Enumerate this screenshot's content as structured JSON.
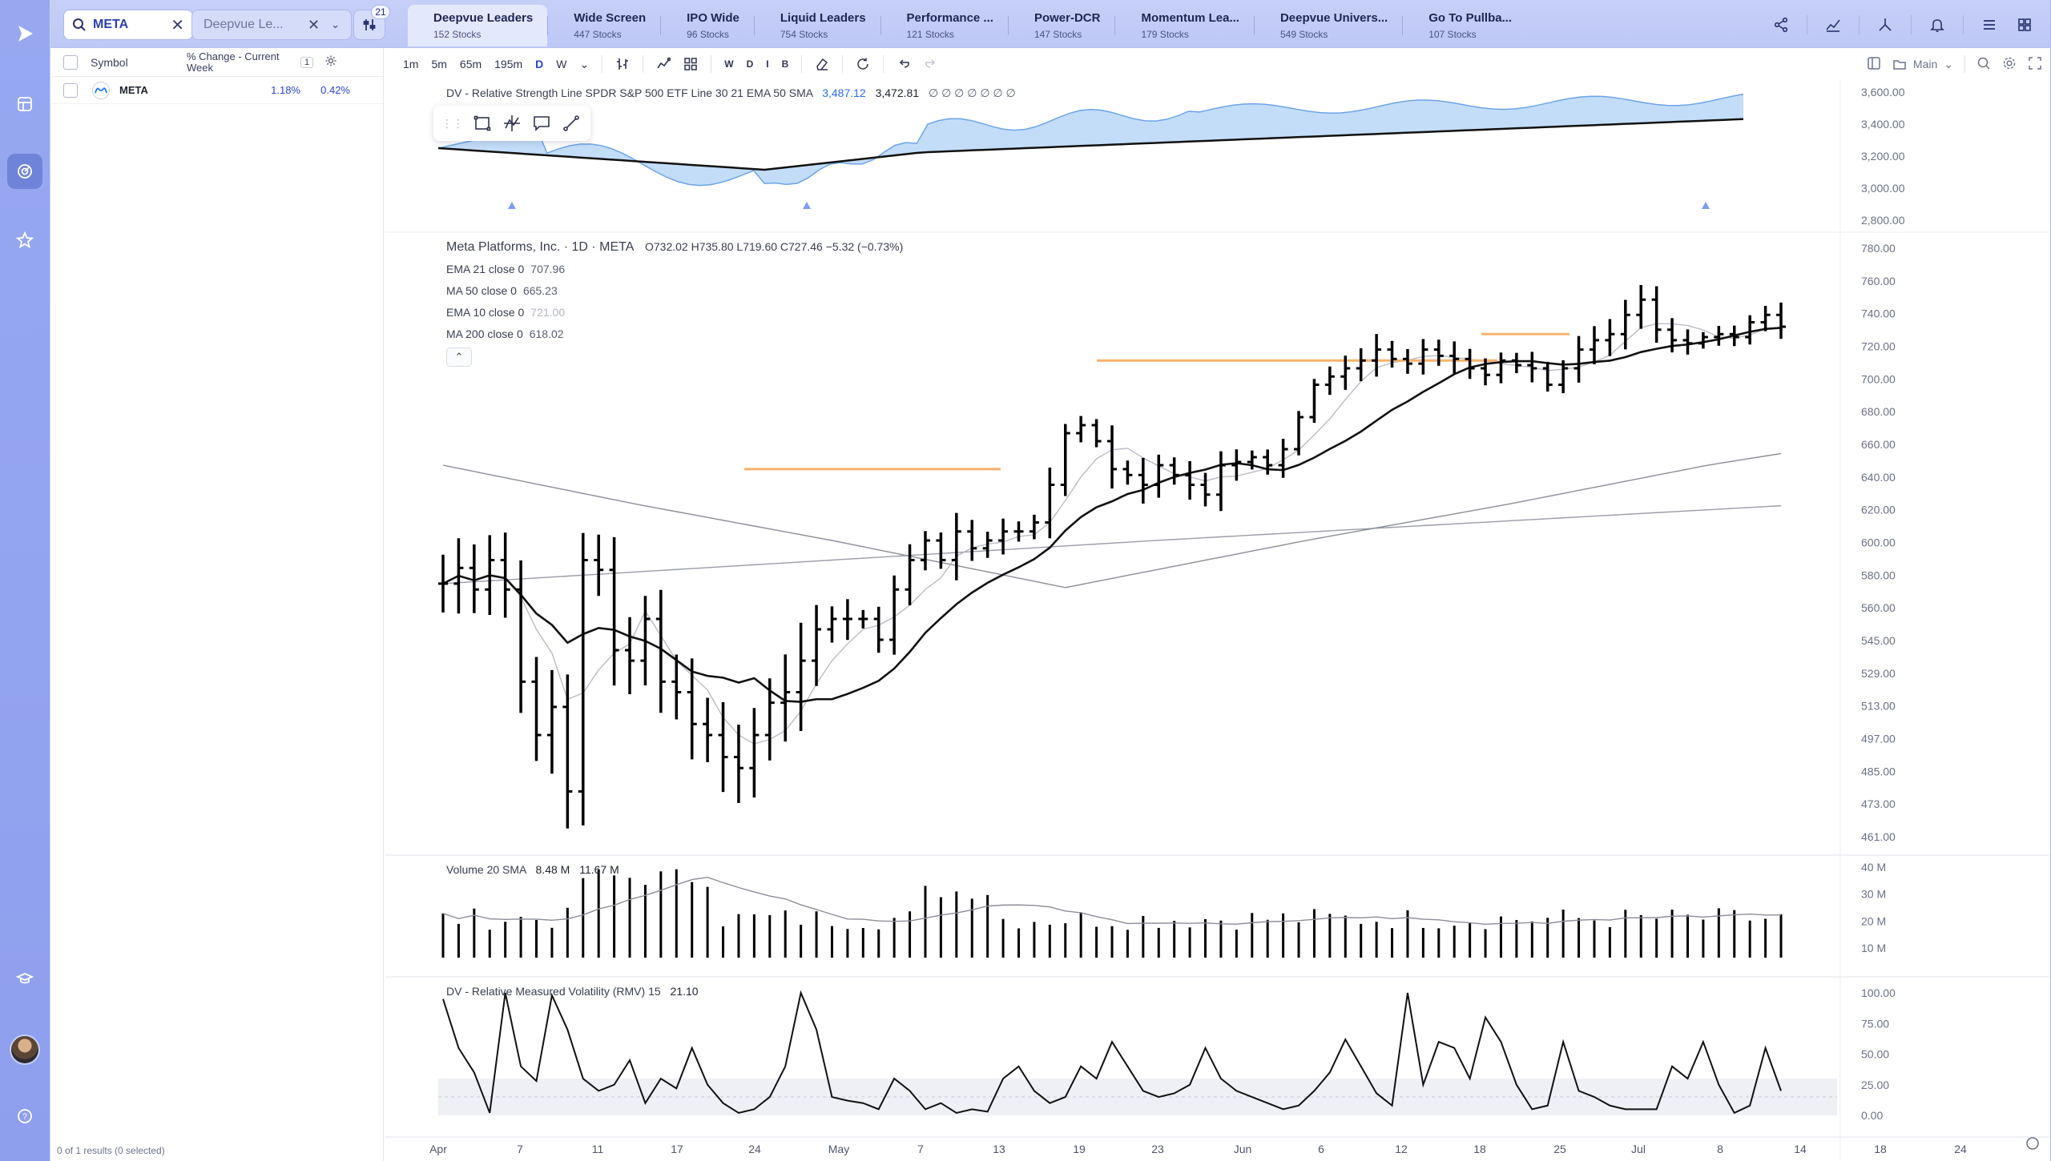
{
  "topbar": {
    "search": {
      "value": "META",
      "clear": "✕"
    },
    "list_select": {
      "value": "Deepvue Le...",
      "clear": "✕",
      "chevron": "⌄"
    },
    "filter_count": "21",
    "tabs": [
      {
        "name": "Deepvue Leaders",
        "count": "152 Stocks"
      },
      {
        "name": "Wide Screen",
        "count": "447 Stocks"
      },
      {
        "name": "IPO Wide",
        "count": "96 Stocks"
      },
      {
        "name": "Liquid Leaders",
        "count": "754 Stocks"
      },
      {
        "name": "Performance ...",
        "count": "121 Stocks"
      },
      {
        "name": "Power-DCR",
        "count": "147 Stocks"
      },
      {
        "name": "Momentum Lea...",
        "count": "179 Stocks"
      },
      {
        "name": "Deepvue Univers...",
        "count": "549 Stocks"
      },
      {
        "name": "Go To Pullba...",
        "count": "107 Stocks"
      }
    ],
    "icons": [
      "share-icon",
      "chart-line-icon",
      "scan-icon",
      "bell-icon",
      "list-view-icon",
      "grid-view-icon"
    ]
  },
  "watchlist": {
    "col_symbol": "Symbol",
    "col_change": "% Change - Current Week",
    "col_change_badge": "1",
    "rows": [
      {
        "symbol": "META",
        "change_week": "1.18%",
        "change_day": "0.42%"
      }
    ],
    "footer": "0 of 1 results (0 selected)"
  },
  "toolbar": {
    "intervals": [
      "1m",
      "5m",
      "65m",
      "195m",
      "D",
      "W"
    ],
    "active_interval": "D",
    "modes": [
      "W",
      "D",
      "I",
      "B"
    ],
    "layout_label": "Main"
  },
  "rs_panel": {
    "legend": "DV - Relative Strength Line SPDR S&P 500 ETF Line 30 21 EMA 50 SMA",
    "v1": "3,487.12",
    "v2": "3,472.81",
    "v3": "∅ ∅ ∅ ∅ ∅ ∅ ∅",
    "axis": [
      "3,600.00",
      "3,400.00",
      "3,200.00",
      "3,000.00",
      "2,800.00"
    ]
  },
  "price_panel": {
    "title": "Meta Platforms, Inc. · 1D · META",
    "ohlc": "O732.02  H735.80  L719.60  C727.46  −5.32 (−0.73%)",
    "studies": [
      {
        "name": "EMA 21 close 0",
        "value": "707.96"
      },
      {
        "name": "MA 50 close 0",
        "value": "665.23"
      },
      {
        "name": "EMA 10 close 0",
        "value": "721.00"
      },
      {
        "name": "MA 200 close 0",
        "value": "618.02"
      }
    ],
    "axis": [
      "780.00",
      "760.00",
      "740.00",
      "720.00",
      "700.00",
      "680.00",
      "660.00",
      "640.00",
      "620.00",
      "600.00",
      "580.00",
      "560.00",
      "545.00",
      "529.00",
      "513.00",
      "497.00",
      "485.00",
      "473.00",
      "461.00"
    ]
  },
  "volume_panel": {
    "legend": "Volume 20 SMA",
    "v1": "8.48 M",
    "v2": "11.67 M",
    "axis": [
      "40 M",
      "30 M",
      "20 M",
      "10 M"
    ]
  },
  "rmv_panel": {
    "legend": "DV - Relative Measured Volatility (RMV) 15",
    "value": "21.10",
    "axis": [
      "100.00",
      "75.00",
      "50.00",
      "25.00",
      "0.00"
    ]
  },
  "time_axis": [
    "Apr",
    "7",
    "11",
    "17",
    "24",
    "May",
    "7",
    "13",
    "19",
    "23",
    "Jun",
    "6",
    "12",
    "18",
    "25",
    "Jul",
    "8",
    "14",
    "18",
    "24"
  ],
  "colors": {
    "accent": "#2b44d8",
    "rs_fill": "#b6d6f8",
    "orange_levels": "#f7b26b"
  }
}
